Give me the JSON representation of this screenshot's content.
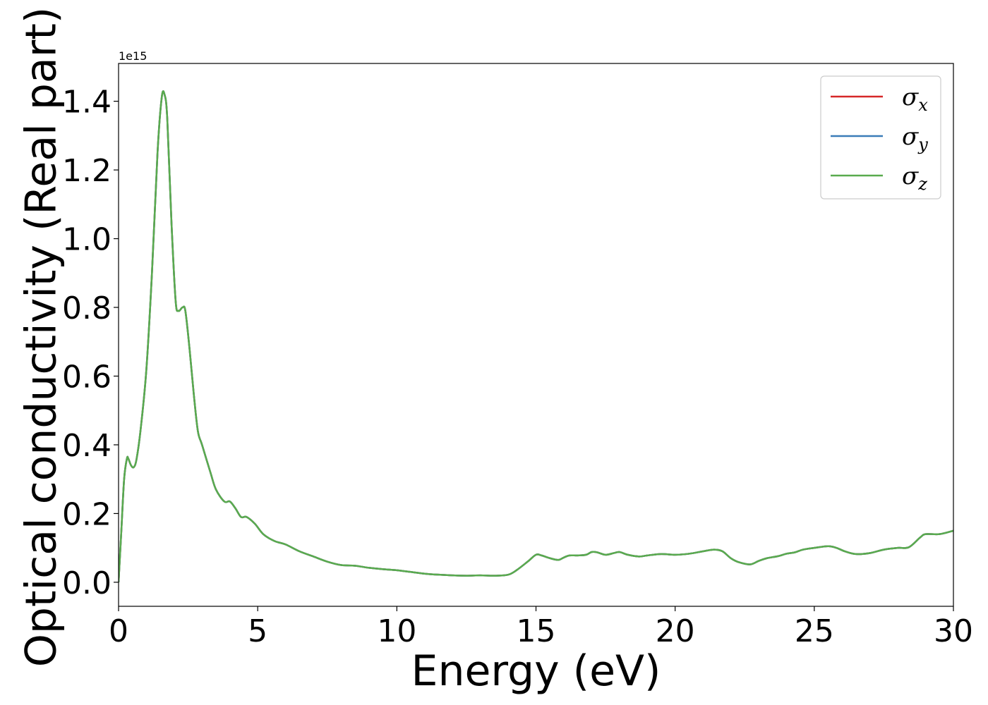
{
  "chart_data": {
    "type": "line",
    "title": "",
    "xlabel": "Energy (eV)",
    "ylabel": "Optical conductivity (Real part)",
    "y_offset_label": "1e15",
    "xlim": [
      0,
      30
    ],
    "ylim": [
      -0.07,
      1.51
    ],
    "xticks": [
      0,
      5,
      10,
      15,
      20,
      25,
      30
    ],
    "xtick_labels": [
      "0",
      "5",
      "10",
      "15",
      "20",
      "25",
      "30"
    ],
    "yticks": [
      0.0,
      0.2,
      0.4,
      0.6,
      0.8,
      1.0,
      1.2,
      1.4
    ],
    "ytick_labels": [
      "0.0",
      "0.2",
      "0.4",
      "0.6",
      "0.8",
      "1.0",
      "1.2",
      "1.4"
    ],
    "grid": false,
    "legend_position": "top-right",
    "x": [
      0,
      0.1,
      0.2,
      0.3,
      0.35,
      0.45,
      0.55,
      0.65,
      0.8,
      1.0,
      1.2,
      1.4,
      1.55,
      1.65,
      1.75,
      1.9,
      2.05,
      2.15,
      2.3,
      2.4,
      2.55,
      2.7,
      2.85,
      3.0,
      3.3,
      3.5,
      3.8,
      4.0,
      4.2,
      4.4,
      4.6,
      4.9,
      5.2,
      5.6,
      6.0,
      6.5,
      7.0,
      7.5,
      8.0,
      8.5,
      9.0,
      9.5,
      10.0,
      10.5,
      11.0,
      11.5,
      12.0,
      12.5,
      13.0,
      13.5,
      14.0,
      14.3,
      14.7,
      15.0,
      15.2,
      15.5,
      15.8,
      16.0,
      16.2,
      16.5,
      16.8,
      17.0,
      17.2,
      17.5,
      17.8,
      18.0,
      18.3,
      18.7,
      19.0,
      19.5,
      20.0,
      20.5,
      21.0,
      21.4,
      21.7,
      22.0,
      22.3,
      22.7,
      23.0,
      23.3,
      23.7,
      24.0,
      24.3,
      24.6,
      25.0,
      25.5,
      25.8,
      26.1,
      26.5,
      27.0,
      27.5,
      28.0,
      28.4,
      28.8,
      29.0,
      29.5,
      30.0
    ],
    "series": [
      {
        "name": "σx",
        "color": "#d62728",
        "values": [
          0.0,
          0.15,
          0.3,
          0.36,
          0.36,
          0.34,
          0.335,
          0.36,
          0.45,
          0.62,
          0.9,
          1.25,
          1.41,
          1.42,
          1.35,
          1.05,
          0.82,
          0.79,
          0.8,
          0.79,
          0.68,
          0.55,
          0.44,
          0.4,
          0.32,
          0.27,
          0.235,
          0.235,
          0.215,
          0.19,
          0.19,
          0.17,
          0.14,
          0.12,
          0.11,
          0.09,
          0.075,
          0.06,
          0.05,
          0.048,
          0.042,
          0.038,
          0.035,
          0.03,
          0.025,
          0.022,
          0.02,
          0.019,
          0.02,
          0.019,
          0.022,
          0.035,
          0.06,
          0.08,
          0.078,
          0.07,
          0.065,
          0.072,
          0.078,
          0.078,
          0.08,
          0.088,
          0.087,
          0.08,
          0.085,
          0.088,
          0.08,
          0.075,
          0.078,
          0.082,
          0.08,
          0.083,
          0.09,
          0.095,
          0.09,
          0.07,
          0.058,
          0.052,
          0.062,
          0.07,
          0.076,
          0.083,
          0.087,
          0.095,
          0.1,
          0.105,
          0.1,
          0.09,
          0.082,
          0.085,
          0.095,
          0.1,
          0.102,
          0.13,
          0.14,
          0.14,
          0.15
        ]
      },
      {
        "name": "σy",
        "color": "#3a7cb8",
        "values": [
          0.0,
          0.15,
          0.3,
          0.36,
          0.36,
          0.34,
          0.335,
          0.36,
          0.45,
          0.62,
          0.9,
          1.25,
          1.41,
          1.42,
          1.35,
          1.05,
          0.82,
          0.79,
          0.8,
          0.79,
          0.68,
          0.55,
          0.44,
          0.4,
          0.32,
          0.27,
          0.235,
          0.235,
          0.215,
          0.19,
          0.19,
          0.17,
          0.14,
          0.12,
          0.11,
          0.09,
          0.075,
          0.06,
          0.05,
          0.048,
          0.042,
          0.038,
          0.035,
          0.03,
          0.025,
          0.022,
          0.02,
          0.019,
          0.02,
          0.019,
          0.022,
          0.035,
          0.06,
          0.08,
          0.078,
          0.07,
          0.065,
          0.072,
          0.078,
          0.078,
          0.08,
          0.088,
          0.087,
          0.08,
          0.085,
          0.088,
          0.08,
          0.075,
          0.078,
          0.082,
          0.08,
          0.083,
          0.09,
          0.095,
          0.09,
          0.07,
          0.058,
          0.052,
          0.062,
          0.07,
          0.076,
          0.083,
          0.087,
          0.095,
          0.1,
          0.105,
          0.1,
          0.09,
          0.082,
          0.085,
          0.095,
          0.1,
          0.102,
          0.13,
          0.14,
          0.14,
          0.15
        ]
      },
      {
        "name": "σz",
        "color": "#59ab4e",
        "values": [
          0.0,
          0.15,
          0.3,
          0.36,
          0.36,
          0.34,
          0.335,
          0.36,
          0.45,
          0.62,
          0.9,
          1.25,
          1.41,
          1.42,
          1.35,
          1.05,
          0.82,
          0.79,
          0.8,
          0.79,
          0.68,
          0.55,
          0.44,
          0.4,
          0.32,
          0.27,
          0.235,
          0.235,
          0.215,
          0.19,
          0.19,
          0.17,
          0.14,
          0.12,
          0.11,
          0.09,
          0.075,
          0.06,
          0.05,
          0.048,
          0.042,
          0.038,
          0.035,
          0.03,
          0.025,
          0.022,
          0.02,
          0.019,
          0.02,
          0.019,
          0.022,
          0.035,
          0.06,
          0.08,
          0.078,
          0.07,
          0.065,
          0.072,
          0.078,
          0.078,
          0.08,
          0.088,
          0.087,
          0.08,
          0.085,
          0.088,
          0.08,
          0.075,
          0.078,
          0.082,
          0.08,
          0.083,
          0.09,
          0.095,
          0.09,
          0.07,
          0.058,
          0.052,
          0.062,
          0.07,
          0.076,
          0.083,
          0.087,
          0.095,
          0.1,
          0.105,
          0.1,
          0.09,
          0.082,
          0.085,
          0.095,
          0.1,
          0.102,
          0.13,
          0.14,
          0.14,
          0.15
        ]
      }
    ],
    "legend": [
      {
        "symbol": "σ",
        "sub": "x",
        "color": "#d62728"
      },
      {
        "symbol": "σ",
        "sub": "y",
        "color": "#3a7cb8"
      },
      {
        "symbol": "σ",
        "sub": "z",
        "color": "#59ab4e"
      }
    ]
  }
}
